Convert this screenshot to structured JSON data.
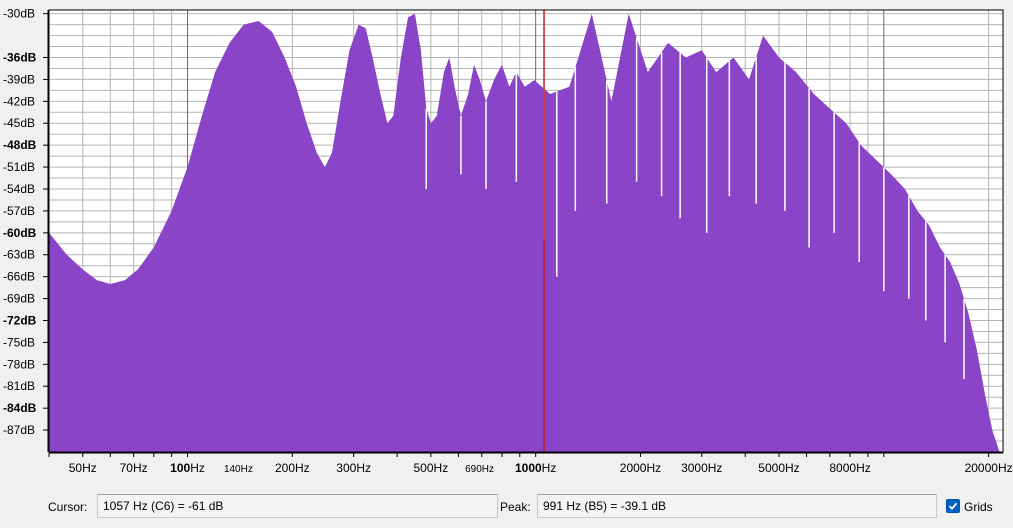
{
  "window": {
    "title": ""
  },
  "chart_data": {
    "type": "area",
    "x_scale": "log",
    "xlim": [
      40,
      22000
    ],
    "ylim": [
      -90,
      -29.5
    ],
    "ylabel_unit": "dB",
    "xlabel_unit": "Hz",
    "fill_color": "#8a44c8",
    "grid": true,
    "y_ticks": [
      {
        "label": "-30dB",
        "value": -30,
        "bold": false
      },
      {
        "label": "-36dB",
        "value": -36,
        "bold": true
      },
      {
        "label": "-39dB",
        "value": -39,
        "bold": false
      },
      {
        "label": "-42dB",
        "value": -42,
        "bold": false
      },
      {
        "label": "-45dB",
        "value": -45,
        "bold": false
      },
      {
        "label": "-48dB",
        "value": -48,
        "bold": true
      },
      {
        "label": "-51dB",
        "value": -51,
        "bold": false
      },
      {
        "label": "-54dB",
        "value": -54,
        "bold": false
      },
      {
        "label": "-57dB",
        "value": -57,
        "bold": false
      },
      {
        "label": "-60dB",
        "value": -60,
        "bold": true
      },
      {
        "label": "-63dB",
        "value": -63,
        "bold": false
      },
      {
        "label": "-66dB",
        "value": -66,
        "bold": false
      },
      {
        "label": "-69dB",
        "value": -69,
        "bold": false
      },
      {
        "label": "-72dB",
        "value": -72,
        "bold": true
      },
      {
        "label": "-75dB",
        "value": -75,
        "bold": false
      },
      {
        "label": "-78dB",
        "value": -78,
        "bold": false
      },
      {
        "label": "-81dB",
        "value": -81,
        "bold": false
      },
      {
        "label": "-84dB",
        "value": -84,
        "bold": true
      },
      {
        "label": "-87dB",
        "value": -87,
        "bold": false
      }
    ],
    "x_ticks": [
      {
        "num": "50",
        "unit": "Hz",
        "value": 50,
        "bold": false,
        "small": false
      },
      {
        "num": "70",
        "unit": "Hz",
        "value": 70,
        "bold": false,
        "small": false
      },
      {
        "num": "100",
        "unit": "Hz",
        "value": 100,
        "bold": true,
        "small": false
      },
      {
        "num": "140",
        "unit": "Hz",
        "value": 140,
        "bold": false,
        "small": true
      },
      {
        "num": "200",
        "unit": "Hz",
        "value": 200,
        "bold": false,
        "small": false
      },
      {
        "num": "300",
        "unit": "Hz",
        "value": 300,
        "bold": false,
        "small": false
      },
      {
        "num": "500",
        "unit": "Hz",
        "value": 500,
        "bold": false,
        "small": false
      },
      {
        "num": "690",
        "unit": "Hz",
        "value": 690,
        "bold": false,
        "small": true
      },
      {
        "num": "1000",
        "unit": "Hz",
        "value": 1000,
        "bold": true,
        "small": false
      },
      {
        "num": "2000",
        "unit": "Hz",
        "value": 2000,
        "bold": false,
        "small": false
      },
      {
        "num": "3000",
        "unit": "Hz",
        "value": 3000,
        "bold": false,
        "small": false
      },
      {
        "num": "5000",
        "unit": "Hz",
        "value": 5000,
        "bold": false,
        "small": false
      },
      {
        "num": "8000",
        "unit": "Hz",
        "value": 8000,
        "bold": false,
        "small": false
      },
      {
        "num": "20000",
        "unit": "Hz",
        "value": 20000,
        "bold": false,
        "small": false
      }
    ],
    "cursor_line_hz": 1057,
    "cursor_line_color": "#c02020",
    "envelope_points": [
      [
        40,
        -60
      ],
      [
        45,
        -63
      ],
      [
        50,
        -65
      ],
      [
        55,
        -66.5
      ],
      [
        60,
        -67
      ],
      [
        66,
        -66.5
      ],
      [
        72,
        -65
      ],
      [
        80,
        -62
      ],
      [
        90,
        -57
      ],
      [
        100,
        -51
      ],
      [
        110,
        -44
      ],
      [
        120,
        -38
      ],
      [
        132,
        -34
      ],
      [
        145,
        -31.5
      ],
      [
        160,
        -31
      ],
      [
        175,
        -32.5
      ],
      [
        190,
        -36
      ],
      [
        205,
        -40
      ],
      [
        220,
        -45
      ],
      [
        235,
        -49
      ],
      [
        248,
        -51
      ],
      [
        260,
        -49
      ],
      [
        275,
        -42
      ],
      [
        292,
        -35
      ],
      [
        310,
        -31.5
      ],
      [
        325,
        -32
      ],
      [
        340,
        -36
      ],
      [
        358,
        -41
      ],
      [
        375,
        -45
      ],
      [
        390,
        -44
      ],
      [
        410,
        -36
      ],
      [
        430,
        -30.5
      ],
      [
        450,
        -30
      ],
      [
        468,
        -35
      ],
      [
        485,
        -43
      ],
      [
        500,
        -45
      ],
      [
        520,
        -44
      ],
      [
        545,
        -38
      ],
      [
        565,
        -36
      ],
      [
        585,
        -40
      ],
      [
        610,
        -44
      ],
      [
        640,
        -41
      ],
      [
        665,
        -37
      ],
      [
        690,
        -39
      ],
      [
        720,
        -42
      ],
      [
        760,
        -39
      ],
      [
        800,
        -37
      ],
      [
        840,
        -40
      ],
      [
        880,
        -38
      ],
      [
        930,
        -40
      ],
      [
        991,
        -39.1
      ],
      [
        1100,
        -41
      ],
      [
        1250,
        -40
      ],
      [
        1450,
        -30
      ],
      [
        1650,
        -42
      ],
      [
        1850,
        -30
      ],
      [
        2100,
        -38
      ],
      [
        2400,
        -34
      ],
      [
        2700,
        -36
      ],
      [
        3000,
        -35
      ],
      [
        3300,
        -38
      ],
      [
        3700,
        -36
      ],
      [
        4100,
        -39
      ],
      [
        4500,
        -33
      ],
      [
        5000,
        -36
      ],
      [
        5600,
        -38
      ],
      [
        6300,
        -41
      ],
      [
        7000,
        -43
      ],
      [
        7800,
        -45
      ],
      [
        8600,
        -48
      ],
      [
        9500,
        -50
      ],
      [
        10500,
        -52
      ],
      [
        11500,
        -54
      ],
      [
        12500,
        -57
      ],
      [
        13500,
        -59
      ],
      [
        14500,
        -62
      ],
      [
        15500,
        -64
      ],
      [
        16500,
        -67
      ],
      [
        17500,
        -71
      ],
      [
        18500,
        -76
      ],
      [
        19500,
        -82
      ],
      [
        20500,
        -87
      ],
      [
        21500,
        -90
      ]
    ],
    "dip_markers": [
      {
        "hz": 485,
        "to_db": -54
      },
      {
        "hz": 610,
        "to_db": -52
      },
      {
        "hz": 720,
        "to_db": -54
      },
      {
        "hz": 880,
        "to_db": -53
      },
      {
        "hz": 1057,
        "to_db": -61
      },
      {
        "hz": 1150,
        "to_db": -66
      },
      {
        "hz": 1300,
        "to_db": -57
      },
      {
        "hz": 1600,
        "to_db": -56
      },
      {
        "hz": 1950,
        "to_db": -53
      },
      {
        "hz": 2300,
        "to_db": -55
      },
      {
        "hz": 2600,
        "to_db": -58
      },
      {
        "hz": 3100,
        "to_db": -60
      },
      {
        "hz": 3600,
        "to_db": -55
      },
      {
        "hz": 4300,
        "to_db": -56
      },
      {
        "hz": 5200,
        "to_db": -57
      },
      {
        "hz": 6100,
        "to_db": -62
      },
      {
        "hz": 7200,
        "to_db": -60
      },
      {
        "hz": 8500,
        "to_db": -64
      },
      {
        "hz": 10000,
        "to_db": -68
      },
      {
        "hz": 11800,
        "to_db": -69
      },
      {
        "hz": 13200,
        "to_db": -72
      },
      {
        "hz": 15000,
        "to_db": -75
      },
      {
        "hz": 17000,
        "to_db": -80
      }
    ]
  },
  "status": {
    "cursor_label": "Cursor:",
    "cursor_value": "1057 Hz (C6) = -61 dB",
    "peak_label": "Peak:",
    "peak_value": "991 Hz (B5) = -39.1 dB",
    "grids_label": "Grids",
    "grids_checked": true
  }
}
